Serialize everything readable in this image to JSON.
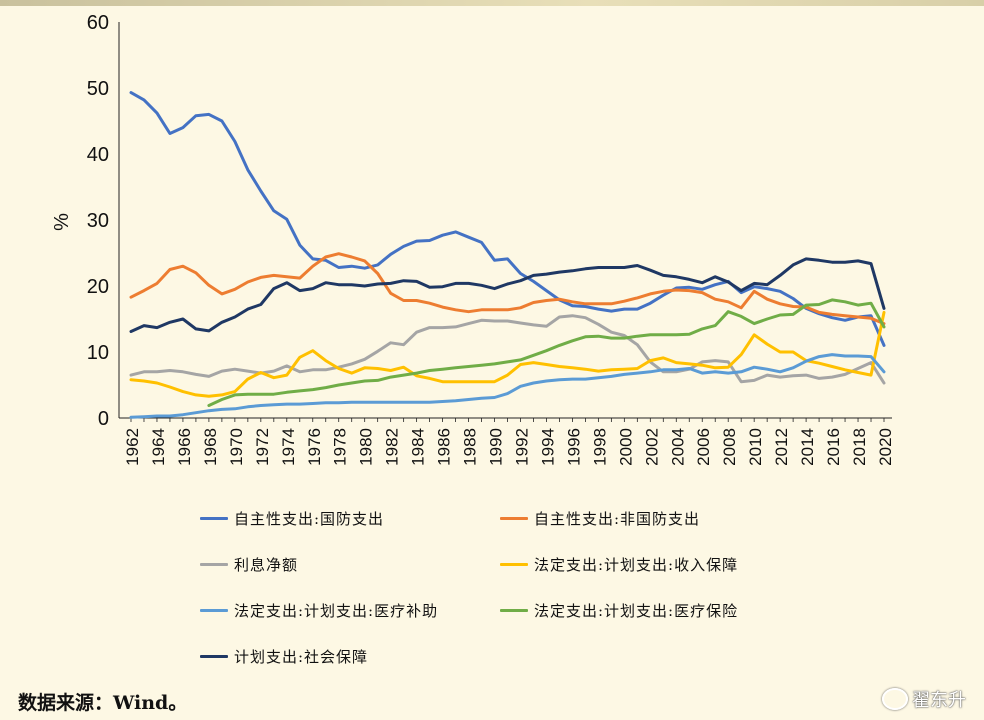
{
  "chart_data": {
    "type": "line",
    "title": "",
    "xlabel": "",
    "ylabel": "%",
    "ylim": [
      0,
      60
    ],
    "yticks": [
      0,
      10,
      20,
      30,
      40,
      50,
      60
    ],
    "x": [
      1962,
      1963,
      1964,
      1965,
      1966,
      1967,
      1968,
      1969,
      1970,
      1971,
      1972,
      1973,
      1974,
      1975,
      1976,
      1977,
      1978,
      1979,
      1980,
      1981,
      1982,
      1983,
      1984,
      1985,
      1986,
      1987,
      1988,
      1989,
      1990,
      1991,
      1992,
      1993,
      1994,
      1995,
      1996,
      1997,
      1998,
      1999,
      2000,
      2001,
      2002,
      2003,
      2004,
      2005,
      2006,
      2007,
      2008,
      2009,
      2010,
      2011,
      2012,
      2013,
      2014,
      2015,
      2016,
      2017,
      2018,
      2019,
      2020
    ],
    "xtick_labels": [
      "1962",
      "1964",
      "1966",
      "1968",
      "1970",
      "1972",
      "1974",
      "1976",
      "1978",
      "1980",
      "1982",
      "1984",
      "1986",
      "1988",
      "1990",
      "1992",
      "1994",
      "1996",
      "1998",
      "2000",
      "2002",
      "2004",
      "2006",
      "2008",
      "2010",
      "2012",
      "2014",
      "2016",
      "2018",
      "2020"
    ],
    "grid": false,
    "legend_position": "bottom",
    "series": [
      {
        "name": "自主性支出:国防支出",
        "color": "#4472c4",
        "values": [
          49.3,
          48.2,
          46.2,
          43.1,
          44.0,
          45.8,
          46.0,
          45.0,
          41.9,
          37.6,
          34.4,
          31.4,
          30.1,
          26.2,
          24.1,
          23.9,
          22.8,
          23.0,
          22.7,
          23.2,
          24.8,
          26.0,
          26.8,
          26.9,
          27.7,
          28.2,
          27.4,
          26.6,
          23.9,
          24.1,
          21.9,
          20.7,
          19.3,
          17.9,
          17.0,
          16.9,
          16.5,
          16.2,
          16.5,
          16.5,
          17.4,
          18.6,
          19.7,
          19.8,
          19.5,
          20.2,
          20.7,
          19.0,
          19.9,
          19.6,
          19.2,
          18.1,
          16.6,
          15.8,
          15.2,
          14.8,
          15.3,
          15.5,
          11.0
        ]
      },
      {
        "name": "自主性支出:非国防支出",
        "color": "#ed7d31",
        "values": [
          18.3,
          19.3,
          20.4,
          22.5,
          23.0,
          22.0,
          20.1,
          18.8,
          19.5,
          20.6,
          21.3,
          21.6,
          21.4,
          21.2,
          23.0,
          24.4,
          24.9,
          24.4,
          23.8,
          21.9,
          18.9,
          17.8,
          17.8,
          17.4,
          16.8,
          16.4,
          16.1,
          16.4,
          16.4,
          16.4,
          16.7,
          17.5,
          17.8,
          18.0,
          17.6,
          17.3,
          17.3,
          17.3,
          17.7,
          18.2,
          18.8,
          19.2,
          19.4,
          19.3,
          19.0,
          18.0,
          17.6,
          16.7,
          19.2,
          18.0,
          17.3,
          16.9,
          16.8,
          16.0,
          15.7,
          15.5,
          15.3,
          15.1,
          14.3
        ]
      },
      {
        "name": "利息净额",
        "color": "#a5a5a5",
        "values": [
          6.5,
          7.0,
          7.0,
          7.2,
          7.0,
          6.6,
          6.3,
          7.1,
          7.4,
          7.1,
          6.8,
          7.1,
          7.9,
          7.0,
          7.3,
          7.3,
          7.7,
          8.2,
          8.9,
          10.1,
          11.4,
          11.1,
          13.0,
          13.7,
          13.7,
          13.8,
          14.3,
          14.8,
          14.7,
          14.7,
          14.4,
          14.1,
          13.9,
          15.3,
          15.5,
          15.2,
          14.2,
          13.0,
          12.5,
          11.1,
          8.5,
          7.0,
          7.0,
          7.4,
          8.5,
          8.7,
          8.5,
          5.5,
          5.7,
          6.5,
          6.2,
          6.4,
          6.5,
          6.0,
          6.2,
          6.6,
          7.5,
          8.4,
          5.3
        ]
      },
      {
        "name": "法定支出:计划支出:收入保障",
        "color": "#ffc000",
        "values": [
          5.8,
          5.6,
          5.3,
          4.7,
          4.0,
          3.5,
          3.3,
          3.5,
          4.0,
          5.9,
          6.9,
          6.1,
          6.5,
          9.2,
          10.2,
          8.7,
          7.5,
          6.8,
          7.6,
          7.5,
          7.2,
          7.7,
          6.4,
          6.0,
          5.5,
          5.5,
          5.5,
          5.5,
          5.5,
          6.5,
          8.1,
          8.4,
          8.1,
          7.8,
          7.6,
          7.4,
          7.1,
          7.3,
          7.4,
          7.5,
          8.7,
          9.1,
          8.4,
          8.2,
          8.0,
          7.6,
          7.7,
          9.6,
          12.6,
          11.2,
          10.0,
          10.0,
          8.7,
          8.3,
          7.8,
          7.3,
          6.9,
          6.5,
          16.0
        ]
      },
      {
        "name": "法定支出:计划支出:医疗补助",
        "color": "#5b9bd5",
        "values": [
          0.1,
          0.2,
          0.3,
          0.3,
          0.5,
          0.8,
          1.1,
          1.3,
          1.4,
          1.7,
          1.9,
          2.0,
          2.1,
          2.1,
          2.2,
          2.3,
          2.3,
          2.4,
          2.4,
          2.4,
          2.4,
          2.4,
          2.4,
          2.4,
          2.5,
          2.6,
          2.8,
          3.0,
          3.1,
          3.7,
          4.8,
          5.3,
          5.6,
          5.8,
          5.9,
          5.9,
          6.1,
          6.3,
          6.6,
          6.8,
          7.0,
          7.3,
          7.3,
          7.5,
          6.8,
          7.0,
          6.8,
          7.0,
          7.7,
          7.4,
          7.0,
          7.6,
          8.6,
          9.3,
          9.6,
          9.4,
          9.4,
          9.3,
          7.0
        ]
      },
      {
        "name": "法定支出:计划支出:医疗保险",
        "color": "#70ad47",
        "values": [
          null,
          null,
          null,
          null,
          null,
          null,
          1.9,
          2.8,
          3.5,
          3.6,
          3.6,
          3.6,
          3.9,
          4.1,
          4.3,
          4.6,
          5.0,
          5.3,
          5.6,
          5.7,
          6.2,
          6.5,
          6.8,
          7.2,
          7.4,
          7.6,
          7.8,
          8.0,
          8.2,
          8.5,
          8.8,
          9.5,
          10.2,
          11.0,
          11.7,
          12.3,
          12.4,
          12.1,
          12.1,
          12.4,
          12.6,
          12.6,
          12.6,
          12.7,
          13.5,
          14.0,
          16.1,
          15.4,
          14.3,
          15.0,
          15.6,
          15.7,
          17.1,
          17.2,
          17.9,
          17.6,
          17.1,
          17.4,
          13.8
        ]
      },
      {
        "name": "计划支出:社会保障",
        "color": "#1f3864",
        "values": [
          13.1,
          14.0,
          13.7,
          14.5,
          15.0,
          13.5,
          13.2,
          14.5,
          15.3,
          16.5,
          17.2,
          19.6,
          20.5,
          19.3,
          19.6,
          20.5,
          20.2,
          20.2,
          20.0,
          20.3,
          20.4,
          20.8,
          20.7,
          19.8,
          19.9,
          20.4,
          20.4,
          20.1,
          19.6,
          20.3,
          20.8,
          21.6,
          21.8,
          22.1,
          22.3,
          22.6,
          22.8,
          22.8,
          22.8,
          23.1,
          22.4,
          21.6,
          21.4,
          21.0,
          20.5,
          21.4,
          20.6,
          19.3,
          20.4,
          20.2,
          21.6,
          23.2,
          24.1,
          23.9,
          23.6,
          23.6,
          23.8,
          23.4,
          16.6
        ]
      }
    ]
  },
  "source_text": "数据来源：Wind。",
  "watermark_text": "翟东升"
}
